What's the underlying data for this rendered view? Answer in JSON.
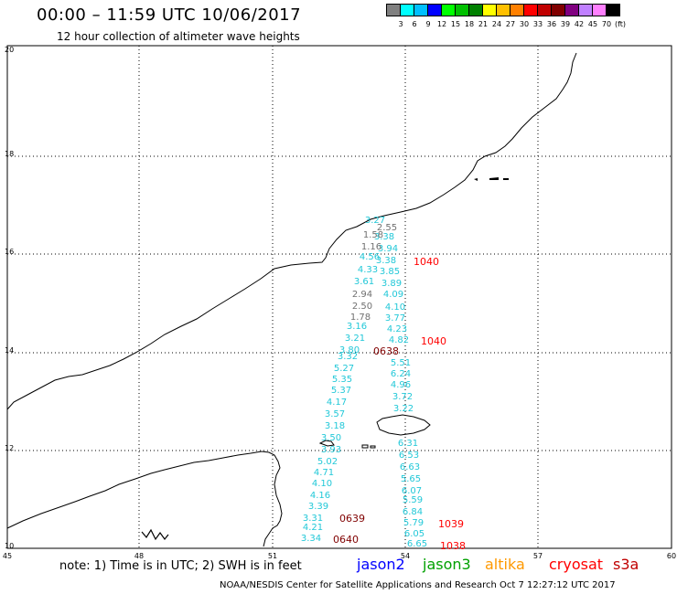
{
  "header": {
    "title": "00:00 – 11:59 UTC 10/06/2017",
    "subtitle": "12 hour collection of altimeter wave heights"
  },
  "legend": {
    "colors": [
      "#808080",
      "#00ffff",
      "#00bfff",
      "#0000ff",
      "#00ff00",
      "#00c000",
      "#008000",
      "#ffff00",
      "#ffc000",
      "#ff8000",
      "#ff0000",
      "#c00000",
      "#800000",
      "#800080",
      "#c080ff",
      "#ff80ff",
      "#000000"
    ],
    "labels": [
      "3",
      "6",
      "9",
      "12",
      "15",
      "18",
      "21",
      "24",
      "27",
      "30",
      "33",
      "36",
      "39",
      "42",
      "45",
      "70",
      "(ft)"
    ]
  },
  "axes": {
    "x_ticks": [
      "45",
      "48",
      "51",
      "54",
      "57",
      "60"
    ],
    "y_ticks": [
      "10",
      "12",
      "14",
      "16",
      "18",
      "20"
    ]
  },
  "tracks": {
    "cyan": [
      "3.27",
      "3.38",
      "3.94",
      "3.38",
      "3.85",
      "3.89",
      "4.09",
      "4.10",
      "3.77",
      "4.23",
      "4.82",
      "5.51",
      "6.24",
      "4.96",
      "3.72",
      "3.22",
      "6.31",
      "6.53",
      "6.63",
      "5.65",
      "6.07",
      "5.59",
      "6.84",
      "5.79",
      "6.05",
      "6.65",
      "4.56",
      "4.33",
      "3.61",
      "3.16",
      "3.21",
      "3.80",
      "3.32",
      "5.27",
      "5.35",
      "5.37",
      "4.17",
      "3.57",
      "3.18",
      "3.50",
      "3.93",
      "5.02",
      "4.71",
      "4.10",
      "4.16",
      "3.39",
      "3.31",
      "4.21",
      "3.34"
    ],
    "gray": [
      "2.55",
      "1.58",
      "1.16",
      "2.94",
      "2.50",
      "1.78"
    ]
  },
  "time_labels": {
    "red": [
      "1040",
      "1040",
      "1039",
      "1038"
    ],
    "dark": [
      "0638",
      "0639",
      "0640"
    ]
  },
  "footer": {
    "note": "note: 1) Time is in UTC; 2) SWH is in feet",
    "satellites": [
      {
        "name": "jason2",
        "color": "#0000ff"
      },
      {
        "name": "jason3",
        "color": "#00a000"
      },
      {
        "name": "altika",
        "color": "#ff9900"
      },
      {
        "name": "cryosat",
        "color": "#ff0000"
      },
      {
        "name": "s3a",
        "color": "#c00000"
      }
    ],
    "credit": "NOAA/NESDIS Center for Satellite Applications and Research    Oct  7 12:27:12 UTC 2017"
  }
}
